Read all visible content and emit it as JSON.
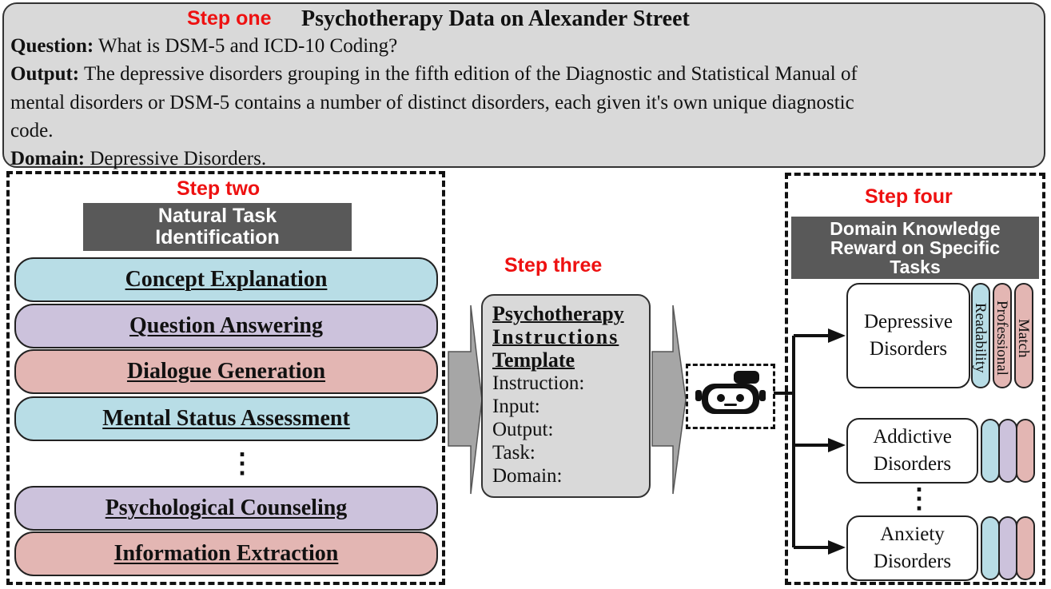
{
  "step_one": {
    "label": "Step one",
    "title": "Psychotherapy Data on Alexander Street",
    "question_key": "Question:",
    "question_text": "What is DSM-5 and ICD-10 Coding?",
    "output_key": "Output:",
    "output_line1": "The depressive disorders grouping in the fifth edition of the Diagnostic and Statistical Manual of",
    "output_line2": "mental disorders or DSM-5 contains a number of distinct disorders, each given it's own unique diagnostic",
    "output_line3": "code.",
    "domain_key": "Domain:",
    "domain_text": "Depressive Disorders."
  },
  "step_two": {
    "label": "Step two",
    "header_line1": "Natural Task",
    "header_line2": "Identification",
    "tasks": [
      {
        "label": "Concept Explanation",
        "color": "#b8dde6"
      },
      {
        "label": "Question Answering",
        "color": "#ccc2dc"
      },
      {
        "label": "Dialogue Generation",
        "color": "#e3b6b3"
      },
      {
        "label": "Mental Status Assessment",
        "color": "#b8dde6"
      },
      {
        "label": "Psychological Counseling",
        "color": "#ccc2dc"
      },
      {
        "label": "Information Extraction",
        "color": "#e3b6b3"
      }
    ],
    "ellipsis": "⋮"
  },
  "step_three": {
    "label": "Step three",
    "title_line1": "Psychotherapy",
    "title_line2": "Instructions",
    "title_line3": "Template",
    "fields": [
      "Instruction:",
      "Input:",
      "Output:",
      "Task:",
      "Domain:"
    ]
  },
  "step_four": {
    "label": "Step four",
    "header_line1": "Domain Knowledge",
    "header_line2": "Reward on Specific",
    "header_line3": "Tasks",
    "disorders": [
      {
        "line1": "Depressive",
        "line2": "Disorders"
      },
      {
        "line1": "Addictive",
        "line2": "Disorders"
      },
      {
        "line1": "Anxiety",
        "line2": "Disorders"
      }
    ],
    "reward_labels": [
      "Readability",
      "Professional",
      "Match"
    ],
    "ellipsis": "⋮"
  },
  "icons": {
    "robot": "robot-icon",
    "arrow": "right-arrow-icon"
  },
  "colors": {
    "step_label": "#ee1111",
    "header_bg": "#595959",
    "panel_bg": "#d9d9d9",
    "blue": "#b8dde6",
    "purple": "#ccc2dc",
    "red": "#e3b6b3"
  }
}
